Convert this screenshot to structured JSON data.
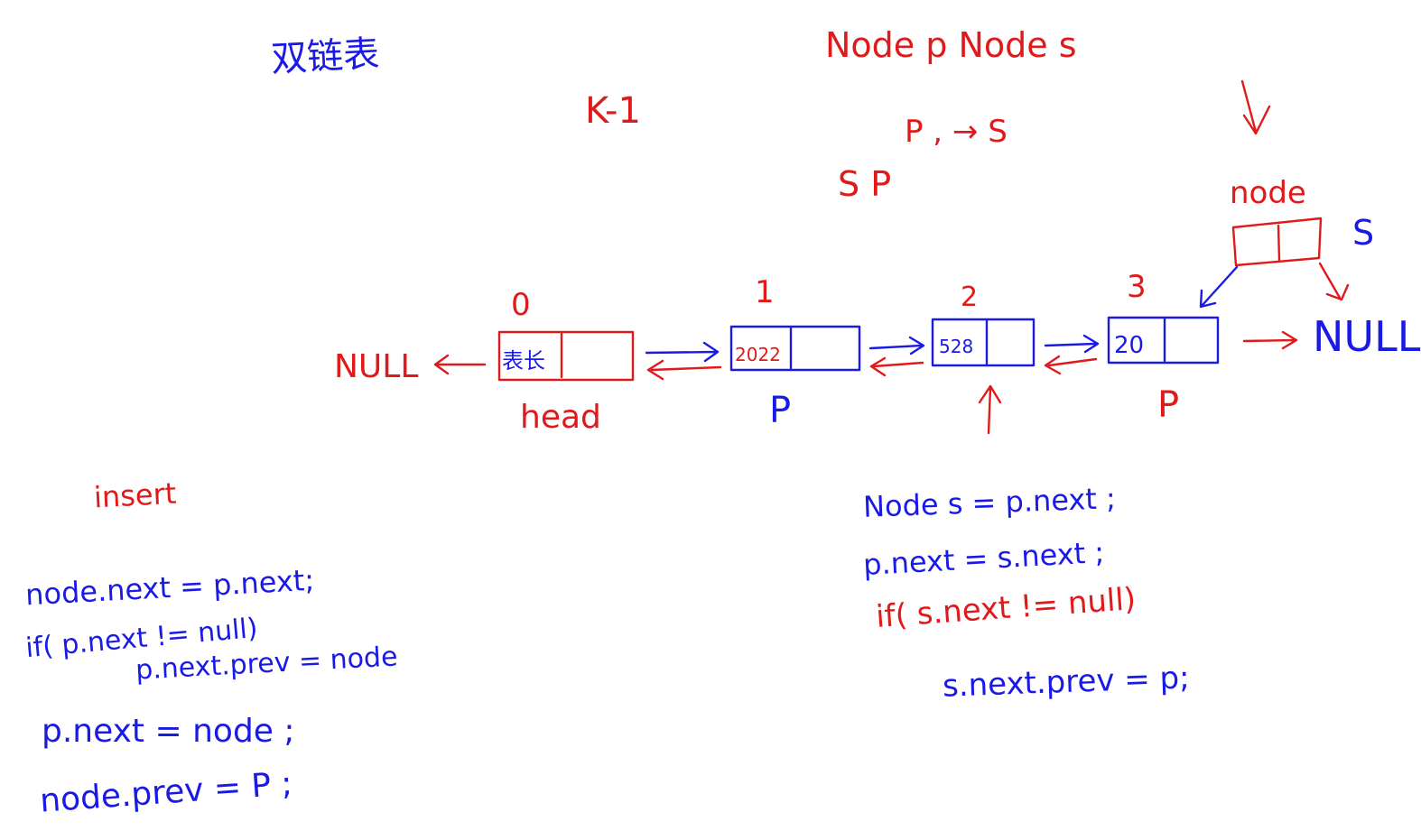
{
  "colors": {
    "ink_blue": "#1a1ae6",
    "ink_red": "#e01a1a",
    "background": "#ffffff"
  },
  "title": "双链表",
  "top_notes": {
    "declaration": "Node p  Node s",
    "k_minus_1": "K-1",
    "p_to_s": "P , → S",
    "s_p": "S   P"
  },
  "nodes": [
    {
      "index": "0",
      "value": "表长",
      "label_below": "head"
    },
    {
      "index": "1",
      "value": "2022",
      "label_below": "P"
    },
    {
      "index": "2",
      "value": "528",
      "label_below": ""
    },
    {
      "index": "3",
      "value": "20",
      "label_below": "P"
    }
  ],
  "null_left": "NULL",
  "null_right": "NULL",
  "new_node": {
    "label": "node",
    "side_label": "S"
  },
  "insert": {
    "title": "insert",
    "lines": [
      "node.next = p.next;",
      "if( p.next != null)",
      "p.next.prev = node",
      "p.next = node ;",
      "node.prev = P ;"
    ]
  },
  "delete": {
    "lines": [
      "Node s = p.next ;",
      "p.next = s.next ;",
      "if( s.next != null)",
      "s.next.prev = p;"
    ]
  }
}
